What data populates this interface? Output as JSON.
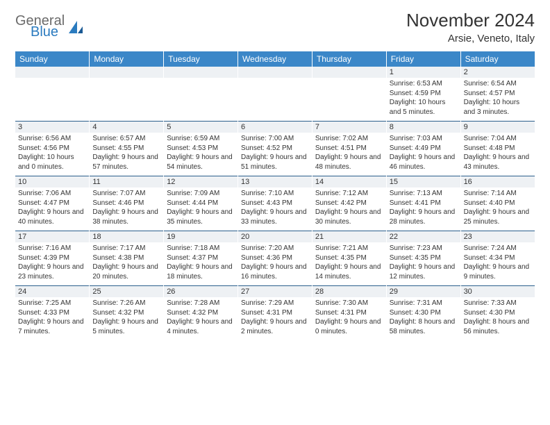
{
  "brand": {
    "name1": "General",
    "name2": "Blue"
  },
  "title": "November 2024",
  "location": "Arsie, Veneto, Italy",
  "colors": {
    "header_bg": "#3b87c8",
    "header_text": "#ffffff",
    "daynum_bg": "#eef1f4",
    "row_border": "#2b5f8c",
    "body_text": "#333333",
    "logo_gray": "#6b6b6b",
    "logo_blue": "#2b7bbf",
    "page_bg": "#ffffff"
  },
  "typography": {
    "title_fontsize": 26,
    "location_fontsize": 15,
    "weekday_fontsize": 12,
    "daynum_fontsize": 11,
    "info_fontsize": 10,
    "font_family": "Arial"
  },
  "weekdays": [
    "Sunday",
    "Monday",
    "Tuesday",
    "Wednesday",
    "Thursday",
    "Friday",
    "Saturday"
  ],
  "weeks": [
    [
      null,
      null,
      null,
      null,
      null,
      {
        "n": "1",
        "sunrise": "6:53 AM",
        "sunset": "4:59 PM",
        "daylight": "10 hours and 5 minutes."
      },
      {
        "n": "2",
        "sunrise": "6:54 AM",
        "sunset": "4:57 PM",
        "daylight": "10 hours and 3 minutes."
      }
    ],
    [
      {
        "n": "3",
        "sunrise": "6:56 AM",
        "sunset": "4:56 PM",
        "daylight": "10 hours and 0 minutes."
      },
      {
        "n": "4",
        "sunrise": "6:57 AM",
        "sunset": "4:55 PM",
        "daylight": "9 hours and 57 minutes."
      },
      {
        "n": "5",
        "sunrise": "6:59 AM",
        "sunset": "4:53 PM",
        "daylight": "9 hours and 54 minutes."
      },
      {
        "n": "6",
        "sunrise": "7:00 AM",
        "sunset": "4:52 PM",
        "daylight": "9 hours and 51 minutes."
      },
      {
        "n": "7",
        "sunrise": "7:02 AM",
        "sunset": "4:51 PM",
        "daylight": "9 hours and 48 minutes."
      },
      {
        "n": "8",
        "sunrise": "7:03 AM",
        "sunset": "4:49 PM",
        "daylight": "9 hours and 46 minutes."
      },
      {
        "n": "9",
        "sunrise": "7:04 AM",
        "sunset": "4:48 PM",
        "daylight": "9 hours and 43 minutes."
      }
    ],
    [
      {
        "n": "10",
        "sunrise": "7:06 AM",
        "sunset": "4:47 PM",
        "daylight": "9 hours and 40 minutes."
      },
      {
        "n": "11",
        "sunrise": "7:07 AM",
        "sunset": "4:46 PM",
        "daylight": "9 hours and 38 minutes."
      },
      {
        "n": "12",
        "sunrise": "7:09 AM",
        "sunset": "4:44 PM",
        "daylight": "9 hours and 35 minutes."
      },
      {
        "n": "13",
        "sunrise": "7:10 AM",
        "sunset": "4:43 PM",
        "daylight": "9 hours and 33 minutes."
      },
      {
        "n": "14",
        "sunrise": "7:12 AM",
        "sunset": "4:42 PM",
        "daylight": "9 hours and 30 minutes."
      },
      {
        "n": "15",
        "sunrise": "7:13 AM",
        "sunset": "4:41 PM",
        "daylight": "9 hours and 28 minutes."
      },
      {
        "n": "16",
        "sunrise": "7:14 AM",
        "sunset": "4:40 PM",
        "daylight": "9 hours and 25 minutes."
      }
    ],
    [
      {
        "n": "17",
        "sunrise": "7:16 AM",
        "sunset": "4:39 PM",
        "daylight": "9 hours and 23 minutes."
      },
      {
        "n": "18",
        "sunrise": "7:17 AM",
        "sunset": "4:38 PM",
        "daylight": "9 hours and 20 minutes."
      },
      {
        "n": "19",
        "sunrise": "7:18 AM",
        "sunset": "4:37 PM",
        "daylight": "9 hours and 18 minutes."
      },
      {
        "n": "20",
        "sunrise": "7:20 AM",
        "sunset": "4:36 PM",
        "daylight": "9 hours and 16 minutes."
      },
      {
        "n": "21",
        "sunrise": "7:21 AM",
        "sunset": "4:35 PM",
        "daylight": "9 hours and 14 minutes."
      },
      {
        "n": "22",
        "sunrise": "7:23 AM",
        "sunset": "4:35 PM",
        "daylight": "9 hours and 12 minutes."
      },
      {
        "n": "23",
        "sunrise": "7:24 AM",
        "sunset": "4:34 PM",
        "daylight": "9 hours and 9 minutes."
      }
    ],
    [
      {
        "n": "24",
        "sunrise": "7:25 AM",
        "sunset": "4:33 PM",
        "daylight": "9 hours and 7 minutes."
      },
      {
        "n": "25",
        "sunrise": "7:26 AM",
        "sunset": "4:32 PM",
        "daylight": "9 hours and 5 minutes."
      },
      {
        "n": "26",
        "sunrise": "7:28 AM",
        "sunset": "4:32 PM",
        "daylight": "9 hours and 4 minutes."
      },
      {
        "n": "27",
        "sunrise": "7:29 AM",
        "sunset": "4:31 PM",
        "daylight": "9 hours and 2 minutes."
      },
      {
        "n": "28",
        "sunrise": "7:30 AM",
        "sunset": "4:31 PM",
        "daylight": "9 hours and 0 minutes."
      },
      {
        "n": "29",
        "sunrise": "7:31 AM",
        "sunset": "4:30 PM",
        "daylight": "8 hours and 58 minutes."
      },
      {
        "n": "30",
        "sunrise": "7:33 AM",
        "sunset": "4:30 PM",
        "daylight": "8 hours and 56 minutes."
      }
    ]
  ],
  "labels": {
    "sunrise_prefix": "Sunrise: ",
    "sunset_prefix": "Sunset: ",
    "daylight_prefix": "Daylight: "
  }
}
